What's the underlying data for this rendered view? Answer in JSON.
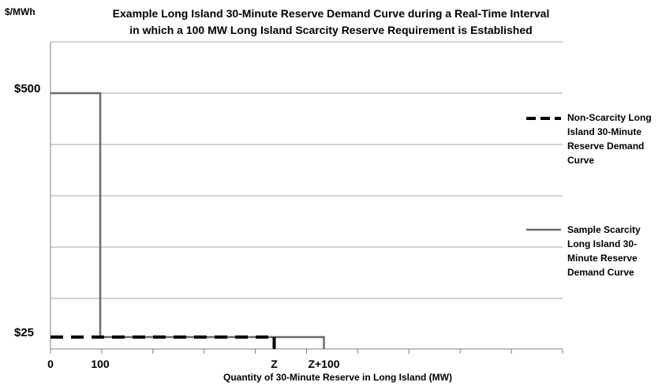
{
  "chart_data": {
    "type": "line",
    "title_lines": [
      "Example Long Island 30-Minute Reserve Demand Curve during a Real-Time Interval",
      "in which a 100 MW Long Island Scarcity Reserve Requirement is Established"
    ],
    "ylabel": "$/MWh",
    "xlabel": "Quantity of 30-Minute Reserve in Long Island (MW)",
    "y_tick_labels": [
      {
        "label": "$500",
        "value": 500
      },
      {
        "label": "$25",
        "value": 25
      }
    ],
    "x_tick_labels": [
      {
        "label": "0",
        "value": 0
      },
      {
        "label": "100",
        "value": 100
      },
      {
        "label": "Z",
        "value": 450
      },
      {
        "label": "Z+100",
        "value": 550
      }
    ],
    "grid": true,
    "legend_position": "right",
    "series": [
      {
        "name": "Non-Scarcity Long Island 30-Minute Reserve Demand Curve",
        "style": "dashed",
        "color": "#000000",
        "points": [
          [
            0,
            25
          ],
          [
            450,
            25
          ],
          [
            450,
            0
          ]
        ]
      },
      {
        "name": "Sample Scarcity Long Island 30-Minute Reserve Demand Curve",
        "style": "solid",
        "color": "#6b6b6b",
        "points": [
          [
            0,
            500
          ],
          [
            100,
            500
          ],
          [
            100,
            25
          ],
          [
            550,
            25
          ],
          [
            550,
            0
          ]
        ]
      }
    ],
    "legend_lines": [
      [
        "Non-Scarcity Long",
        "Island 30-Minute",
        "Reserve Demand",
        "Curve"
      ],
      [
        "Sample Scarcity",
        "Long Island 30-",
        "Minute Reserve",
        "Demand Curve"
      ]
    ]
  }
}
